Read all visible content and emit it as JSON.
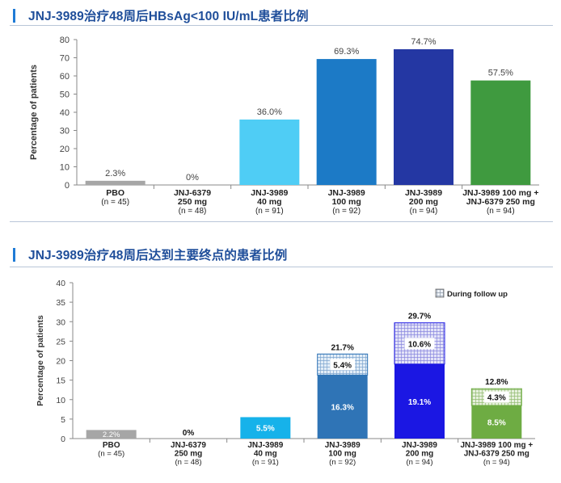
{
  "panels": [
    {
      "title": "JNJ-3989治疗48周后HBsAg<100 IU/mL患者比例"
    },
    {
      "title": "JNJ-3989治疗48周后达到主要终点的患者比例"
    }
  ],
  "colors": {
    "pbo": "#a6a6a6",
    "jnj3989_40": "#4fcdf5",
    "jnj3989_100": "#1c7ac6",
    "jnj3989_200": "#2437a3",
    "combo": "#3f9a3f",
    "bottom_40": "#16b2ea",
    "bottom_100": "#2f74b6",
    "bottom_200": "#1b17e3",
    "bottom_combo": "#6eac43"
  },
  "chart_data": [
    {
      "type": "bar",
      "title": "JNJ-3989治疗48周后HBsAg<100 IU/mL患者比例",
      "ylabel": "Percentage of patients",
      "ylim": [
        0,
        80
      ],
      "yticks": [
        "0",
        "10",
        "20",
        "30",
        "40",
        "50",
        "60",
        "70",
        "80"
      ],
      "categories": [
        [
          "PBO",
          "(n = 45)"
        ],
        [
          "JNJ-6379",
          "250 mg",
          "(n = 48)"
        ],
        [
          "JNJ-3989",
          "40 mg",
          "(n = 91)"
        ],
        [
          "JNJ-3989",
          "100 mg",
          "(n = 92)"
        ],
        [
          "JNJ-3989",
          "200 mg",
          "(n = 94)"
        ],
        [
          "JNJ-3989 100 mg +",
          "JNJ-6379 250 mg",
          "(n = 94)"
        ]
      ],
      "values": [
        2.3,
        0,
        36.0,
        69.3,
        74.7,
        57.5
      ],
      "labels": [
        "2.3%",
        "0%",
        "36.0%",
        "69.3%",
        "74.7%",
        "57.5%"
      ],
      "bar_colors": [
        "#a6a6a6",
        "#a6a6a6",
        "#4fcdf5",
        "#1c7ac6",
        "#2437a3",
        "#3f9a3f"
      ]
    },
    {
      "type": "bar",
      "stacked": true,
      "title": "JNJ-3989治疗48周后达到主要终点的患者比例",
      "ylabel": "Percentage of patients",
      "ylim": [
        0,
        40
      ],
      "yticks": [
        "0",
        "5",
        "10",
        "15",
        "20",
        "25",
        "30",
        "35",
        "40"
      ],
      "legend": {
        "label": "During follow up",
        "placement": "top-right"
      },
      "categories": [
        [
          "PBO",
          "(n = 45)"
        ],
        [
          "JNJ-6379",
          "250 mg",
          "(n = 48)"
        ],
        [
          "JNJ-3989",
          "40 mg",
          "(n = 91)"
        ],
        [
          "JNJ-3989",
          "100 mg",
          "(n = 92)"
        ],
        [
          "JNJ-3989",
          "200 mg",
          "(n = 94)"
        ],
        [
          "JNJ-3989 100 mg +",
          "JNJ-6379 250 mg",
          "(n = 94)"
        ]
      ],
      "on_treatment": [
        2.2,
        0,
        5.5,
        16.3,
        19.1,
        8.5
      ],
      "on_treatment_labels": [
        "2.2%",
        "0%",
        "5.5%",
        "16.3%",
        "19.1%",
        "8.5%"
      ],
      "follow_up": [
        0,
        0,
        0,
        5.4,
        10.6,
        4.3
      ],
      "follow_up_labels": [
        "",
        "",
        "",
        "5.4%",
        "10.6%",
        "4.3%"
      ],
      "totals": [
        2.2,
        0,
        5.5,
        21.7,
        29.7,
        12.8
      ],
      "total_labels": [
        "",
        "",
        "",
        "21.7%",
        "29.7%",
        "12.8%"
      ],
      "bar_colors": [
        "#a6a6a6",
        "#a6a6a6",
        "#16b2ea",
        "#2f74b6",
        "#1b17e3",
        "#6eac43"
      ]
    }
  ]
}
